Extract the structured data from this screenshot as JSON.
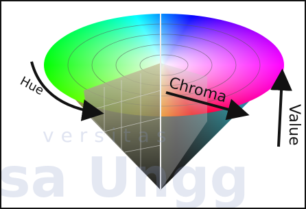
{
  "labels": {
    "hue": "Hue",
    "chroma": "Chroma",
    "value": "Value"
  },
  "watermark": {
    "line1": "versitas",
    "line2": "sa Ungg"
  }
}
